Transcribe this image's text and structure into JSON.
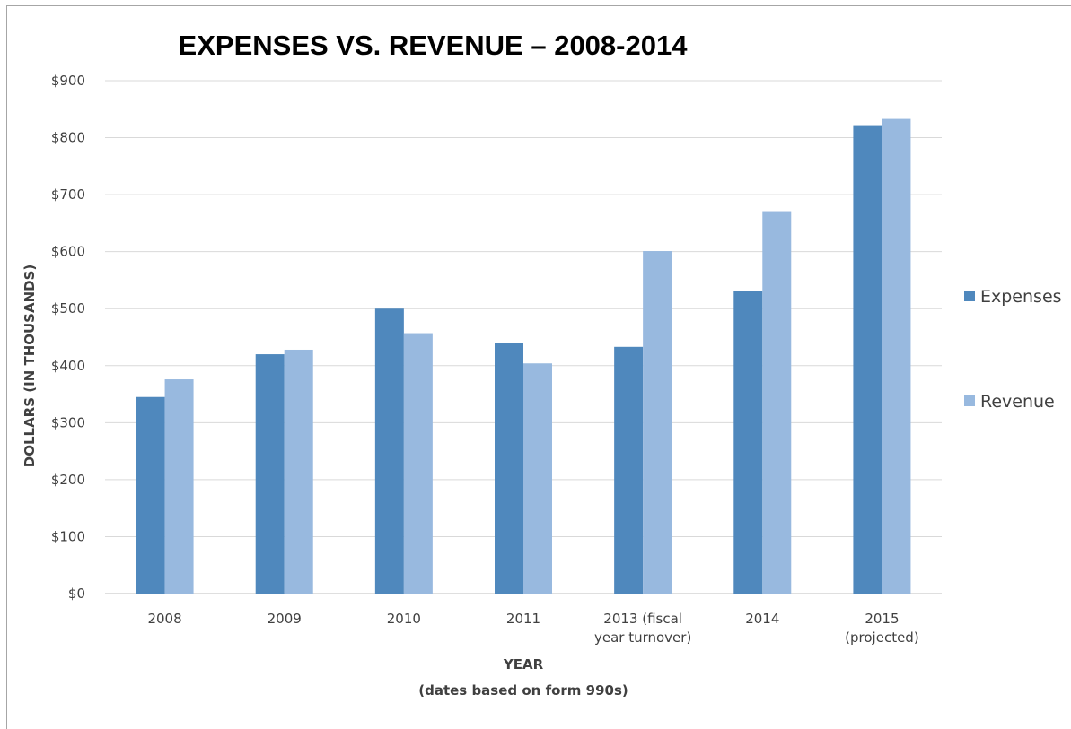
{
  "chart_data": {
    "type": "bar",
    "title": "EXPENSES VS. REVENUE – 2008-2014",
    "xlabel": "YEAR",
    "xlabel_sub": "(dates based on form 990s)",
    "ylabel": "DOLLARS (IN THOUSANDS)",
    "ylim": [
      0,
      900
    ],
    "ytick_step": 100,
    "ytick_labels": [
      "$0",
      "$100",
      "$200",
      "$300",
      "$400",
      "$500",
      "$600",
      "$700",
      "$800",
      "$900"
    ],
    "grid": true,
    "legend_position": "right",
    "categories": [
      [
        "2008"
      ],
      [
        "2009"
      ],
      [
        "2010"
      ],
      [
        "2011"
      ],
      [
        "2013 (fiscal",
        "year turnover)"
      ],
      [
        "2014"
      ],
      [
        "2015",
        "(projected)"
      ]
    ],
    "series": [
      {
        "name": "Expenses",
        "color": "#4f88bd",
        "values": [
          345,
          420,
          500,
          440,
          433,
          531,
          822
        ]
      },
      {
        "name": "Revenue",
        "color": "#98b9df",
        "values": [
          376,
          428,
          457,
          404,
          601,
          671,
          833
        ]
      }
    ],
    "gridline_color": "#d9d9d9",
    "axis_color": "#bfbfbf"
  }
}
